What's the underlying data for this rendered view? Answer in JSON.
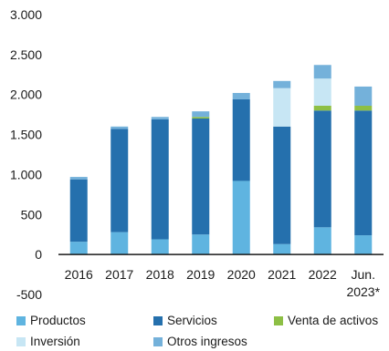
{
  "chart_data": {
    "type": "bar",
    "stacked": true,
    "categories": [
      "2016",
      "2017",
      "2018",
      "2019",
      "2020",
      "2021",
      "2022",
      "Jun. 2023*"
    ],
    "category_lines": [
      [
        "2016"
      ],
      [
        "2017"
      ],
      [
        "2018"
      ],
      [
        "2019"
      ],
      [
        "2020"
      ],
      [
        "2021"
      ],
      [
        "2022"
      ],
      [
        "Jun.",
        "2023*"
      ]
    ],
    "y_ticks": [
      {
        "value": 3000,
        "label": "3.000"
      },
      {
        "value": 2500,
        "label": "2.500"
      },
      {
        "value": 2000,
        "label": "2.000"
      },
      {
        "value": 1500,
        "label": "1.500"
      },
      {
        "value": 1000,
        "label": "1.000"
      },
      {
        "value": 500,
        "label": "500"
      },
      {
        "value": 0,
        "label": "0"
      },
      {
        "value": -500,
        "label": "-500"
      }
    ],
    "ylim": [
      -500,
      3000
    ],
    "grid": false,
    "legend_position": "bottom",
    "series": [
      {
        "name": "Productos",
        "color": "#5fb4e0",
        "values": [
          160,
          280,
          190,
          250,
          920,
          130,
          340,
          240
        ]
      },
      {
        "name": "Servicios",
        "color": "#2570ad",
        "values": [
          780,
          1290,
          1500,
          1450,
          1020,
          1470,
          1460,
          1560
        ]
      },
      {
        "name": "Venta de activos",
        "color": "#8dbf45",
        "values": [
          0,
          0,
          0,
          20,
          0,
          0,
          60,
          60
        ]
      },
      {
        "name": "Inversión",
        "color": "#c7e6f4",
        "values": [
          0,
          0,
          0,
          0,
          0,
          480,
          340,
          0
        ]
      },
      {
        "name": "Otros ingresos",
        "color": "#74b1da",
        "values": [
          30,
          30,
          30,
          70,
          80,
          90,
          170,
          240
        ]
      }
    ]
  }
}
